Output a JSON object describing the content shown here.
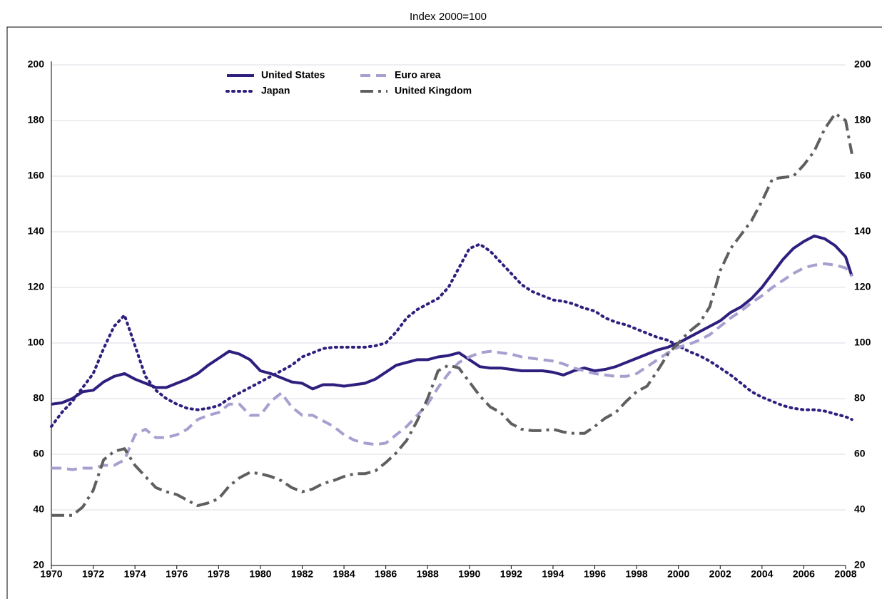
{
  "chart_data": {
    "type": "line",
    "title": "Index 2000=100",
    "x": [
      1970,
      1970.5,
      1971,
      1971.5,
      1972,
      1972.5,
      1973,
      1973.5,
      1974,
      1974.5,
      1975,
      1975.5,
      1976,
      1976.5,
      1977,
      1977.5,
      1978,
      1978.5,
      1979,
      1979.5,
      1980,
      1980.5,
      1981,
      1981.5,
      1982,
      1982.5,
      1983,
      1983.5,
      1984,
      1984.5,
      1985,
      1985.5,
      1986,
      1986.5,
      1987,
      1987.5,
      1988,
      1988.5,
      1989,
      1989.5,
      1990,
      1990.5,
      1991,
      1991.5,
      1992,
      1992.5,
      1993,
      1993.5,
      1994,
      1994.5,
      1995,
      1995.5,
      1996,
      1996.5,
      1997,
      1997.5,
      1998,
      1998.5,
      1999,
      1999.5,
      2000,
      2000.5,
      2001,
      2001.5,
      2002,
      2002.5,
      2003,
      2003.5,
      2004,
      2004.5,
      2005,
      2005.5,
      2006,
      2006.5,
      2007,
      2007.5,
      2008,
      2008.3
    ],
    "series": [
      {
        "name": "United States",
        "color": "#2e1f7e",
        "dash": "solid",
        "values": [
          78,
          78.5,
          80,
          82.5,
          83,
          86,
          88,
          89,
          87,
          85.5,
          84,
          84,
          85.5,
          87,
          89,
          92,
          94.5,
          97,
          96,
          94,
          90,
          89,
          87.5,
          86,
          85.5,
          83.5,
          85,
          85,
          84.5,
          85,
          85.5,
          87,
          89.5,
          92,
          93,
          94,
          94,
          95,
          95.5,
          96.5,
          94,
          91.5,
          91,
          91,
          90.5,
          90,
          90,
          90,
          89.5,
          88.5,
          90,
          91,
          90,
          90.5,
          91.5,
          93,
          94.5,
          96,
          97.5,
          98.5,
          100,
          102,
          104,
          106,
          108,
          111,
          113,
          116,
          120,
          125,
          130,
          134,
          136.5,
          138.5,
          137.5,
          135,
          131,
          124
        ]
      },
      {
        "name": "Japan",
        "color": "#2e1f7e",
        "dash": "dotted",
        "values": [
          70,
          75,
          79,
          84,
          89,
          98,
          106,
          110,
          99,
          88,
          83,
          80,
          78,
          76.5,
          76,
          76.5,
          77.5,
          80,
          82,
          84,
          86,
          88,
          90,
          92,
          95,
          96.5,
          98,
          98.5,
          98.5,
          98.5,
          98.5,
          99,
          100,
          104,
          109,
          112,
          114,
          116,
          120,
          127,
          134,
          135.5,
          133,
          129,
          125,
          121,
          118.5,
          117,
          115.5,
          115,
          114,
          112.5,
          111.5,
          109,
          107.5,
          106.5,
          105,
          103.5,
          102,
          101,
          99,
          97,
          95.5,
          93.5,
          91,
          88.5,
          85.5,
          82.5,
          80.5,
          79,
          77.5,
          76.5,
          76,
          76,
          75.5,
          74.5,
          73.5,
          72.5
        ]
      },
      {
        "name": "Euro area",
        "color": "#a79fcf",
        "dash": "dashed",
        "values": [
          55,
          55,
          54.5,
          55,
          55,
          56,
          56,
          58,
          67,
          69,
          66,
          66,
          67,
          69,
          72.5,
          74,
          75,
          78,
          78,
          74,
          74,
          79,
          82,
          77,
          74,
          74,
          72,
          70,
          67,
          65,
          64,
          63.5,
          64,
          67,
          70,
          74,
          78,
          84,
          89,
          93,
          95,
          96.5,
          97,
          96.5,
          96,
          95,
          94.5,
          94,
          93.5,
          92.5,
          91,
          90,
          89,
          88.5,
          88,
          88,
          89,
          91.5,
          94,
          96.5,
          98.5,
          99.5,
          101,
          103,
          106,
          109,
          111.5,
          114.5,
          117,
          120,
          122.5,
          125,
          127,
          128,
          128.5,
          128,
          127,
          124
        ]
      },
      {
        "name": "United Kingdom",
        "color": "#5f5f5f",
        "dash": "dashdot",
        "values": [
          38,
          38,
          38,
          41,
          47,
          58,
          61,
          62,
          56,
          52,
          48,
          46.5,
          45.5,
          43.5,
          41.5,
          42.5,
          44,
          48.5,
          51.5,
          53.5,
          53,
          52,
          50.5,
          48,
          46.5,
          47.5,
          49.5,
          50.5,
          52,
          53,
          53,
          54,
          57,
          60.5,
          65,
          72,
          80,
          90,
          92,
          91,
          86,
          81,
          77,
          75,
          71,
          69,
          68.5,
          68.5,
          69,
          68,
          67.5,
          67.5,
          70,
          73,
          75,
          79,
          82.5,
          84.5,
          90,
          96,
          100,
          104,
          107,
          113,
          126,
          134,
          139,
          144,
          151,
          159,
          159.5,
          160,
          164,
          169,
          177,
          182.5,
          180,
          168
        ]
      }
    ],
    "xlim": [
      1970,
      2008
    ],
    "xticks": [
      1970,
      1972,
      1974,
      1976,
      1978,
      1980,
      1982,
      1984,
      1986,
      1988,
      1990,
      1992,
      1994,
      1996,
      1998,
      2000,
      2002,
      2004,
      2006,
      2008
    ],
    "ylim": [
      20,
      200
    ],
    "yticks": [
      20,
      40,
      60,
      80,
      100,
      120,
      140,
      160,
      180,
      200
    ],
    "y2lim": [
      20,
      200
    ],
    "y2ticks": [
      20,
      40,
      60,
      80,
      100,
      120,
      140,
      160,
      180,
      200
    ],
    "grid": true,
    "legend": "top"
  }
}
